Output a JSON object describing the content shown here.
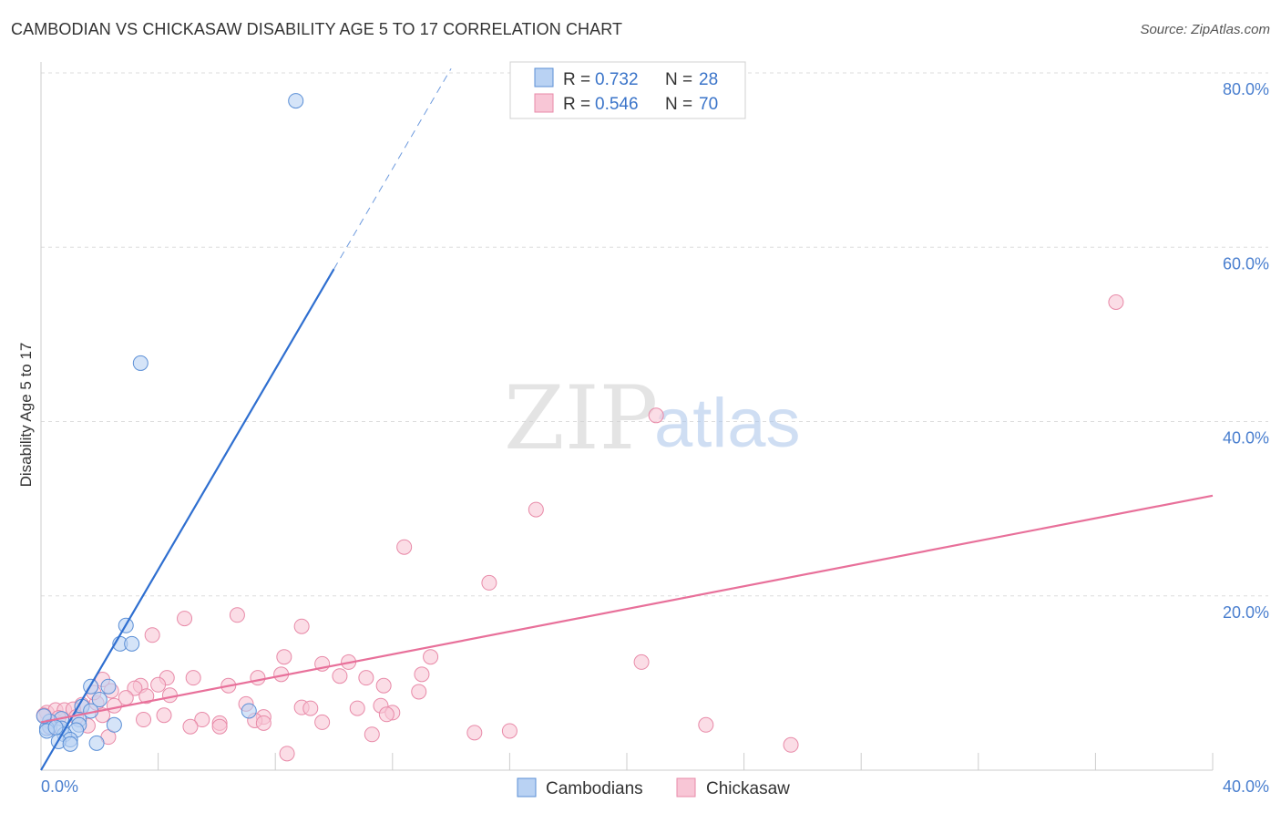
{
  "title": "CAMBODIAN VS CHICKASAW DISABILITY AGE 5 TO 17 CORRELATION CHART",
  "source": "Source: ZipAtlas.com",
  "watermark": {
    "zip": "ZIP",
    "atlas": "atlas"
  },
  "colors": {
    "cambodians": "#5b8fd6",
    "cambodians_fill": "#b9d2f3",
    "chickasaw": "#e88aa8",
    "chickasaw_fill": "#f8c6d6",
    "blue_line": "#2f6fd0",
    "pink_line": "#e8709a",
    "grid": "#dddddd",
    "tick_label": "#4a7fcf"
  },
  "legend": {
    "rows": [
      {
        "r_label": "R =",
        "r_value": "0.732",
        "n_label": "N =",
        "n_value": "28",
        "series": "cambodians"
      },
      {
        "r_label": "R =",
        "r_value": "0.546",
        "n_label": "N =",
        "n_value": "70",
        "series": "chickasaw"
      }
    ]
  },
  "bottom_legend": [
    "Cambodians",
    "Chickasaw"
  ],
  "chart_data": {
    "type": "scatter",
    "title": "CAMBODIAN VS CHICKASAW DISABILITY AGE 5 TO 17 CORRELATION CHART",
    "xlabel": "",
    "ylabel": "Disability Age 5 to 17",
    "xlim": [
      0,
      40
    ],
    "ylim": [
      0,
      80
    ],
    "x_tick_labels": [
      "0.0%",
      "40.0%"
    ],
    "y_ticks": [
      20,
      40,
      60,
      80
    ],
    "y_tick_labels": [
      "20.0%",
      "40.0%",
      "60.0%",
      "80.0%"
    ],
    "grid": true,
    "series": [
      {
        "name": "Cambodians",
        "r": 0.732,
        "n": 28,
        "trend": {
          "x0": 0,
          "y0": 0,
          "x1": 10.0,
          "y1": 57.5,
          "dashed_to_x": 14.0,
          "dashed_to_y": 80.5
        },
        "points": [
          [
            8.7,
            76.8
          ],
          [
            3.4,
            46.7
          ],
          [
            2.9,
            16.6
          ],
          [
            2.7,
            14.5
          ],
          [
            3.1,
            14.5
          ],
          [
            1.7,
            9.6
          ],
          [
            2.3,
            9.6
          ],
          [
            2.0,
            8.1
          ],
          [
            1.4,
            7.3
          ],
          [
            1.7,
            6.8
          ],
          [
            1.3,
            5.8
          ],
          [
            0.7,
            5.9
          ],
          [
            0.3,
            5.6
          ],
          [
            1.3,
            5.2
          ],
          [
            2.5,
            5.2
          ],
          [
            0.3,
            5.0
          ],
          [
            0.7,
            4.8
          ],
          [
            1.2,
            4.6
          ],
          [
            0.2,
            4.8
          ],
          [
            0.8,
            4.1
          ],
          [
            1.0,
            3.5
          ],
          [
            0.6,
            3.3
          ],
          [
            1.9,
            3.1
          ],
          [
            7.1,
            6.8
          ],
          [
            0.1,
            6.2
          ],
          [
            0.2,
            4.5
          ],
          [
            0.5,
            4.9
          ],
          [
            1.0,
            3.0
          ]
        ]
      },
      {
        "name": "Chickasaw",
        "r": 0.546,
        "n": 70,
        "trend": {
          "x0": 0,
          "y0": 5.5,
          "x1": 40,
          "y1": 31.5
        },
        "points": [
          [
            36.7,
            53.7
          ],
          [
            21.0,
            40.7
          ],
          [
            16.9,
            29.9
          ],
          [
            12.4,
            25.6
          ],
          [
            15.3,
            21.5
          ],
          [
            6.7,
            17.8
          ],
          [
            4.9,
            17.4
          ],
          [
            8.9,
            16.5
          ],
          [
            3.8,
            15.5
          ],
          [
            20.5,
            12.4
          ],
          [
            8.3,
            13.0
          ],
          [
            10.5,
            12.4
          ],
          [
            9.6,
            12.2
          ],
          [
            13.3,
            13.0
          ],
          [
            5.2,
            10.6
          ],
          [
            4.3,
            10.6
          ],
          [
            4.0,
            9.8
          ],
          [
            2.1,
            10.4
          ],
          [
            8.2,
            11.0
          ],
          [
            13.0,
            11.0
          ],
          [
            7.4,
            10.6
          ],
          [
            10.2,
            10.8
          ],
          [
            11.1,
            10.6
          ],
          [
            11.7,
            9.7
          ],
          [
            6.4,
            9.7
          ],
          [
            3.4,
            9.7
          ],
          [
            2.4,
            9.1
          ],
          [
            3.2,
            9.4
          ],
          [
            4.4,
            8.6
          ],
          [
            3.6,
            8.5
          ],
          [
            2.9,
            8.3
          ],
          [
            12.9,
            9.0
          ],
          [
            2.5,
            7.4
          ],
          [
            1.4,
            7.5
          ],
          [
            1.9,
            7.7
          ],
          [
            7.0,
            7.6
          ],
          [
            8.9,
            7.2
          ],
          [
            9.2,
            7.1
          ],
          [
            10.8,
            7.1
          ],
          [
            11.6,
            7.4
          ],
          [
            12.0,
            6.6
          ],
          [
            0.2,
            6.6
          ],
          [
            0.5,
            6.9
          ],
          [
            0.8,
            6.9
          ],
          [
            1.1,
            7.0
          ],
          [
            7.6,
            6.1
          ],
          [
            11.8,
            6.4
          ],
          [
            3.5,
            5.8
          ],
          [
            5.5,
            5.8
          ],
          [
            6.1,
            5.4
          ],
          [
            7.3,
            5.7
          ],
          [
            7.6,
            5.4
          ],
          [
            9.6,
            5.5
          ],
          [
            1.6,
            5.1
          ],
          [
            5.1,
            5.0
          ],
          [
            6.1,
            5.0
          ],
          [
            11.3,
            4.1
          ],
          [
            0.3,
            4.9
          ],
          [
            14.8,
            4.3
          ],
          [
            16.0,
            4.5
          ],
          [
            2.3,
            3.8
          ],
          [
            22.7,
            5.2
          ],
          [
            25.6,
            2.9
          ],
          [
            8.4,
            1.9
          ],
          [
            0.1,
            6.3
          ],
          [
            0.6,
            6.0
          ],
          [
            1.2,
            6.1
          ],
          [
            2.1,
            6.3
          ],
          [
            4.2,
            6.3
          ],
          [
            1.8,
            8.9
          ]
        ]
      }
    ]
  }
}
